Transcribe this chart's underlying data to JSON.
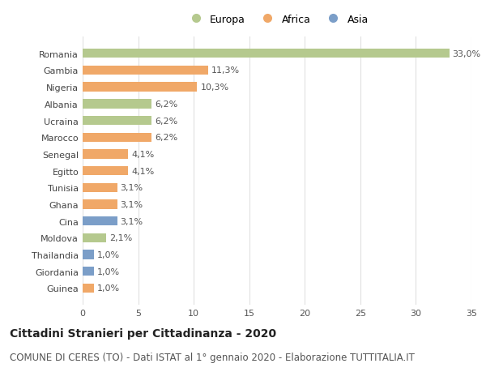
{
  "countries": [
    "Romania",
    "Gambia",
    "Nigeria",
    "Albania",
    "Ucraina",
    "Marocco",
    "Senegal",
    "Egitto",
    "Tunisia",
    "Ghana",
    "Cina",
    "Moldova",
    "Thailandia",
    "Giordania",
    "Guinea"
  ],
  "values": [
    33.0,
    11.3,
    10.3,
    6.2,
    6.2,
    6.2,
    4.1,
    4.1,
    3.1,
    3.1,
    3.1,
    2.1,
    1.0,
    1.0,
    1.0
  ],
  "continents": [
    "Europa",
    "Africa",
    "Africa",
    "Europa",
    "Europa",
    "Africa",
    "Africa",
    "Africa",
    "Africa",
    "Africa",
    "Asia",
    "Europa",
    "Asia",
    "Asia",
    "Africa"
  ],
  "colors": {
    "Europa": "#b5c98e",
    "Africa": "#f0a868",
    "Asia": "#7b9ec8"
  },
  "legend_labels": [
    "Europa",
    "Africa",
    "Asia"
  ],
  "xlim": [
    0,
    35
  ],
  "xticks": [
    0,
    5,
    10,
    15,
    20,
    25,
    30,
    35
  ],
  "title": "Cittadini Stranieri per Cittadinanza - 2020",
  "subtitle": "COMUNE DI CERES (TO) - Dati ISTAT al 1° gennaio 2020 - Elaborazione TUTTITALIA.IT",
  "title_fontsize": 10,
  "subtitle_fontsize": 8.5,
  "label_fontsize": 8,
  "tick_fontsize": 8,
  "background_color": "#ffffff",
  "plot_bg_color": "#ffffff",
  "bar_height": 0.55
}
